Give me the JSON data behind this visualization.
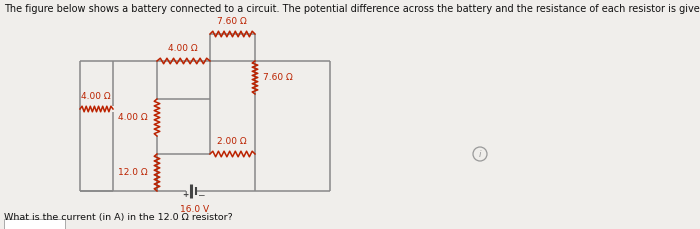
{
  "title": "The figure below shows a battery connected to a circuit. The potential difference across the battery and the resistance of each resistor is given in the figure.",
  "question": "What is the current (in A) in the 12.0 Ω resistor?",
  "background_color": "#f0eeeb",
  "wire_color": "#888888",
  "resistor_color": "#bb2200",
  "text_color": "#bb2200",
  "label_color": "#333333",
  "battery_color": "#444444",
  "resistors": {
    "outer_left": "4.00 Ω",
    "top_horiz": "4.00 Ω",
    "inner_left_top": "4.00 Ω",
    "inner_left_bot": "12.0 Ω",
    "right_col_top": "7.60 Ω",
    "right_col_mid": "7.60 Ω",
    "right_col_bot": "2.00 Ω"
  },
  "battery_label": "16.0 V",
  "title_fontsize": 7.0,
  "fig_width": 7.0,
  "fig_height": 2.3
}
